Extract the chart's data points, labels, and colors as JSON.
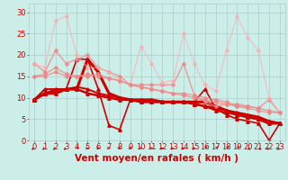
{
  "background_color": "#cceee8",
  "grid_color": "#aacccc",
  "xlabel": "Vent moyen/en rafales ( km/h )",
  "xlabel_color": "#cc0000",
  "xlabel_fontsize": 7.5,
  "ylabel_ticks": [
    0,
    5,
    10,
    15,
    20,
    25,
    30
  ],
  "ylim": [
    0,
    32
  ],
  "tick_fontsize": 6,
  "tick_color": "#cc0000",
  "series": [
    {
      "x": [
        0,
        1,
        2,
        3,
        4,
        5,
        6,
        7,
        8,
        9,
        10,
        11,
        12,
        13,
        14,
        15,
        16,
        17,
        18,
        19,
        20,
        21,
        22,
        23
      ],
      "y": [
        9.5,
        11,
        11,
        12,
        12,
        19,
        16,
        11,
        10,
        9.5,
        9.5,
        9.5,
        9,
        9,
        9,
        9,
        9,
        8,
        7,
        6,
        5.5,
        5,
        4,
        4
      ],
      "color": "#cc0000",
      "alpha": 1.0,
      "lw": 2.2,
      "marker": "^",
      "ms": 2.5
    },
    {
      "x": [
        0,
        1,
        2,
        3,
        4,
        5,
        6,
        7,
        8,
        9,
        10,
        11,
        12,
        13,
        14,
        15,
        16,
        17,
        18,
        19,
        20,
        21,
        22,
        23
      ],
      "y": [
        9.5,
        11,
        11.5,
        12,
        12,
        11,
        10.5,
        10,
        9.5,
        9.5,
        9,
        9,
        9,
        9,
        9,
        8.5,
        8,
        7.5,
        7,
        6.5,
        6,
        5.5,
        4.5,
        4
      ],
      "color": "#cc0000",
      "alpha": 1.0,
      "lw": 1.8,
      "marker": "^",
      "ms": 2.5
    },
    {
      "x": [
        0,
        1,
        2,
        3,
        4,
        5,
        6,
        7,
        8,
        9,
        10,
        11,
        12,
        13,
        14,
        15,
        16,
        17,
        18,
        19,
        20,
        21,
        22,
        23
      ],
      "y": [
        9.5,
        11,
        12,
        12,
        19,
        19,
        12,
        3.5,
        2.5,
        9.5,
        9.5,
        9.5,
        9,
        9,
        9,
        9,
        12,
        7.5,
        6,
        5,
        4.5,
        4,
        0,
        4
      ],
      "color": "#cc0000",
      "alpha": 1.0,
      "lw": 1.2,
      "marker": "^",
      "ms": 2.5
    },
    {
      "x": [
        0,
        1,
        2,
        3,
        4,
        5,
        6,
        7,
        8,
        9,
        10,
        11,
        12,
        13,
        14,
        15,
        16,
        17,
        18,
        19,
        20,
        21,
        22,
        23
      ],
      "y": [
        9.5,
        12,
        12,
        12,
        12.5,
        12,
        11,
        10.5,
        10,
        9.5,
        9,
        9,
        9,
        9,
        9,
        8.5,
        8,
        7,
        6.5,
        6,
        5.5,
        5,
        4.5,
        4
      ],
      "color": "#cc0000",
      "alpha": 1.0,
      "lw": 1.4,
      "marker": "^",
      "ms": 2.5
    },
    {
      "x": [
        0,
        1,
        2,
        3,
        4,
        5,
        6,
        7,
        8,
        9,
        10,
        11,
        12,
        13,
        14,
        15,
        16,
        17,
        18,
        19,
        20,
        21,
        22,
        23
      ],
      "y": [
        18,
        16,
        21,
        18,
        19,
        20,
        17,
        16,
        15,
        13,
        13,
        13,
        13,
        13,
        18,
        10.5,
        9,
        8,
        8.5,
        8.5,
        8,
        7.5,
        9.5,
        6.5
      ],
      "color": "#ee8888",
      "alpha": 0.8,
      "lw": 1.0,
      "marker": "D",
      "ms": 2
    },
    {
      "x": [
        0,
        1,
        2,
        3,
        4,
        5,
        6,
        7,
        8,
        9,
        10,
        11,
        12,
        13,
        14,
        15,
        16,
        17,
        18,
        19,
        20,
        21,
        22,
        23
      ],
      "y": [
        15,
        15.5,
        17,
        15.5,
        15,
        15,
        15.5,
        14.5,
        14,
        13,
        12.5,
        12,
        11.5,
        11,
        10.5,
        10,
        9.5,
        9,
        8.5,
        8,
        7.5,
        7,
        6.5,
        6.5
      ],
      "color": "#ee8888",
      "alpha": 0.8,
      "lw": 1.0,
      "marker": "D",
      "ms": 2
    },
    {
      "x": [
        0,
        1,
        2,
        3,
        4,
        5,
        6,
        7,
        8,
        9,
        10,
        11,
        12,
        13,
        14,
        15,
        16,
        17,
        18,
        19,
        20,
        21,
        22,
        23
      ],
      "y": [
        18,
        17,
        28,
        29,
        20,
        17,
        17,
        16,
        14,
        13,
        22,
        18,
        13.5,
        14,
        25,
        18,
        13,
        11.5,
        21,
        29,
        24,
        21,
        10,
        6.5
      ],
      "color": "#ffaaaa",
      "alpha": 0.65,
      "lw": 0.9,
      "marker": "D",
      "ms": 2
    },
    {
      "x": [
        0,
        1,
        2,
        3,
        4,
        5,
        6,
        7,
        8,
        9,
        10,
        11,
        12,
        13,
        14,
        15,
        16,
        17,
        18,
        19,
        20,
        21,
        22,
        23
      ],
      "y": [
        15,
        15,
        16,
        15,
        15,
        15.5,
        15,
        14.5,
        14,
        13,
        12.5,
        12,
        11.5,
        11,
        11,
        10.5,
        10,
        9.5,
        9,
        8,
        8,
        7.5,
        7,
        6.5
      ],
      "color": "#ee8888",
      "alpha": 0.8,
      "lw": 1.0,
      "marker": "D",
      "ms": 2
    }
  ],
  "xtick_labels": [
    "0",
    "1",
    "2",
    "3",
    "4",
    "5",
    "6",
    "7",
    "8",
    "9",
    "10",
    "11",
    "12",
    "13",
    "14",
    "15",
    "16",
    "17",
    "18",
    "19",
    "20",
    "21",
    "22",
    "23"
  ]
}
